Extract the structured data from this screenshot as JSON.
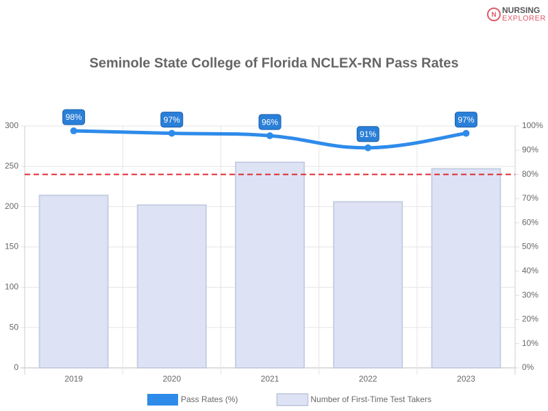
{
  "logo": {
    "line1": "NURSING",
    "line2": "EXPLORER"
  },
  "chart_data": {
    "type": "bar",
    "title": "Seminole State College of Florida NCLEX-RN Pass Rates",
    "categories": [
      "2019",
      "2020",
      "2021",
      "2022",
      "2023"
    ],
    "series": [
      {
        "name": "Pass Rates (%)",
        "type": "line",
        "axis": "y2",
        "color": "#2e8bea",
        "values": [
          98,
          97,
          96,
          91,
          97
        ],
        "value_labels": [
          "98%",
          "97%",
          "96%",
          "91%",
          "97%"
        ]
      },
      {
        "name": "Number of First-Time Test Takers",
        "type": "bar",
        "axis": "y",
        "color": "#dde3f5",
        "border_color": "#c6cee2",
        "values": [
          214,
          202,
          255,
          206,
          247
        ]
      }
    ],
    "threshold": {
      "value": 80,
      "axis": "y2",
      "color": "#e0282e"
    },
    "ylim": [
      0,
      300
    ],
    "yticks": [
      0,
      50,
      100,
      150,
      200,
      250,
      300
    ],
    "y2lim": [
      0,
      100
    ],
    "y2ticks": [
      {
        "value": 0,
        "label": "0%"
      },
      {
        "value": 10,
        "label": "10%"
      },
      {
        "value": 20,
        "label": "20%"
      },
      {
        "value": 30,
        "label": "30%"
      },
      {
        "value": 40,
        "label": "40%"
      },
      {
        "value": 50,
        "label": "50%"
      },
      {
        "value": 60,
        "label": "60%"
      },
      {
        "value": 70,
        "label": "70%"
      },
      {
        "value": 80,
        "label": "80%"
      },
      {
        "value": 90,
        "label": "90%"
      },
      {
        "value": 100,
        "label": "100%"
      }
    ],
    "grid": true
  }
}
